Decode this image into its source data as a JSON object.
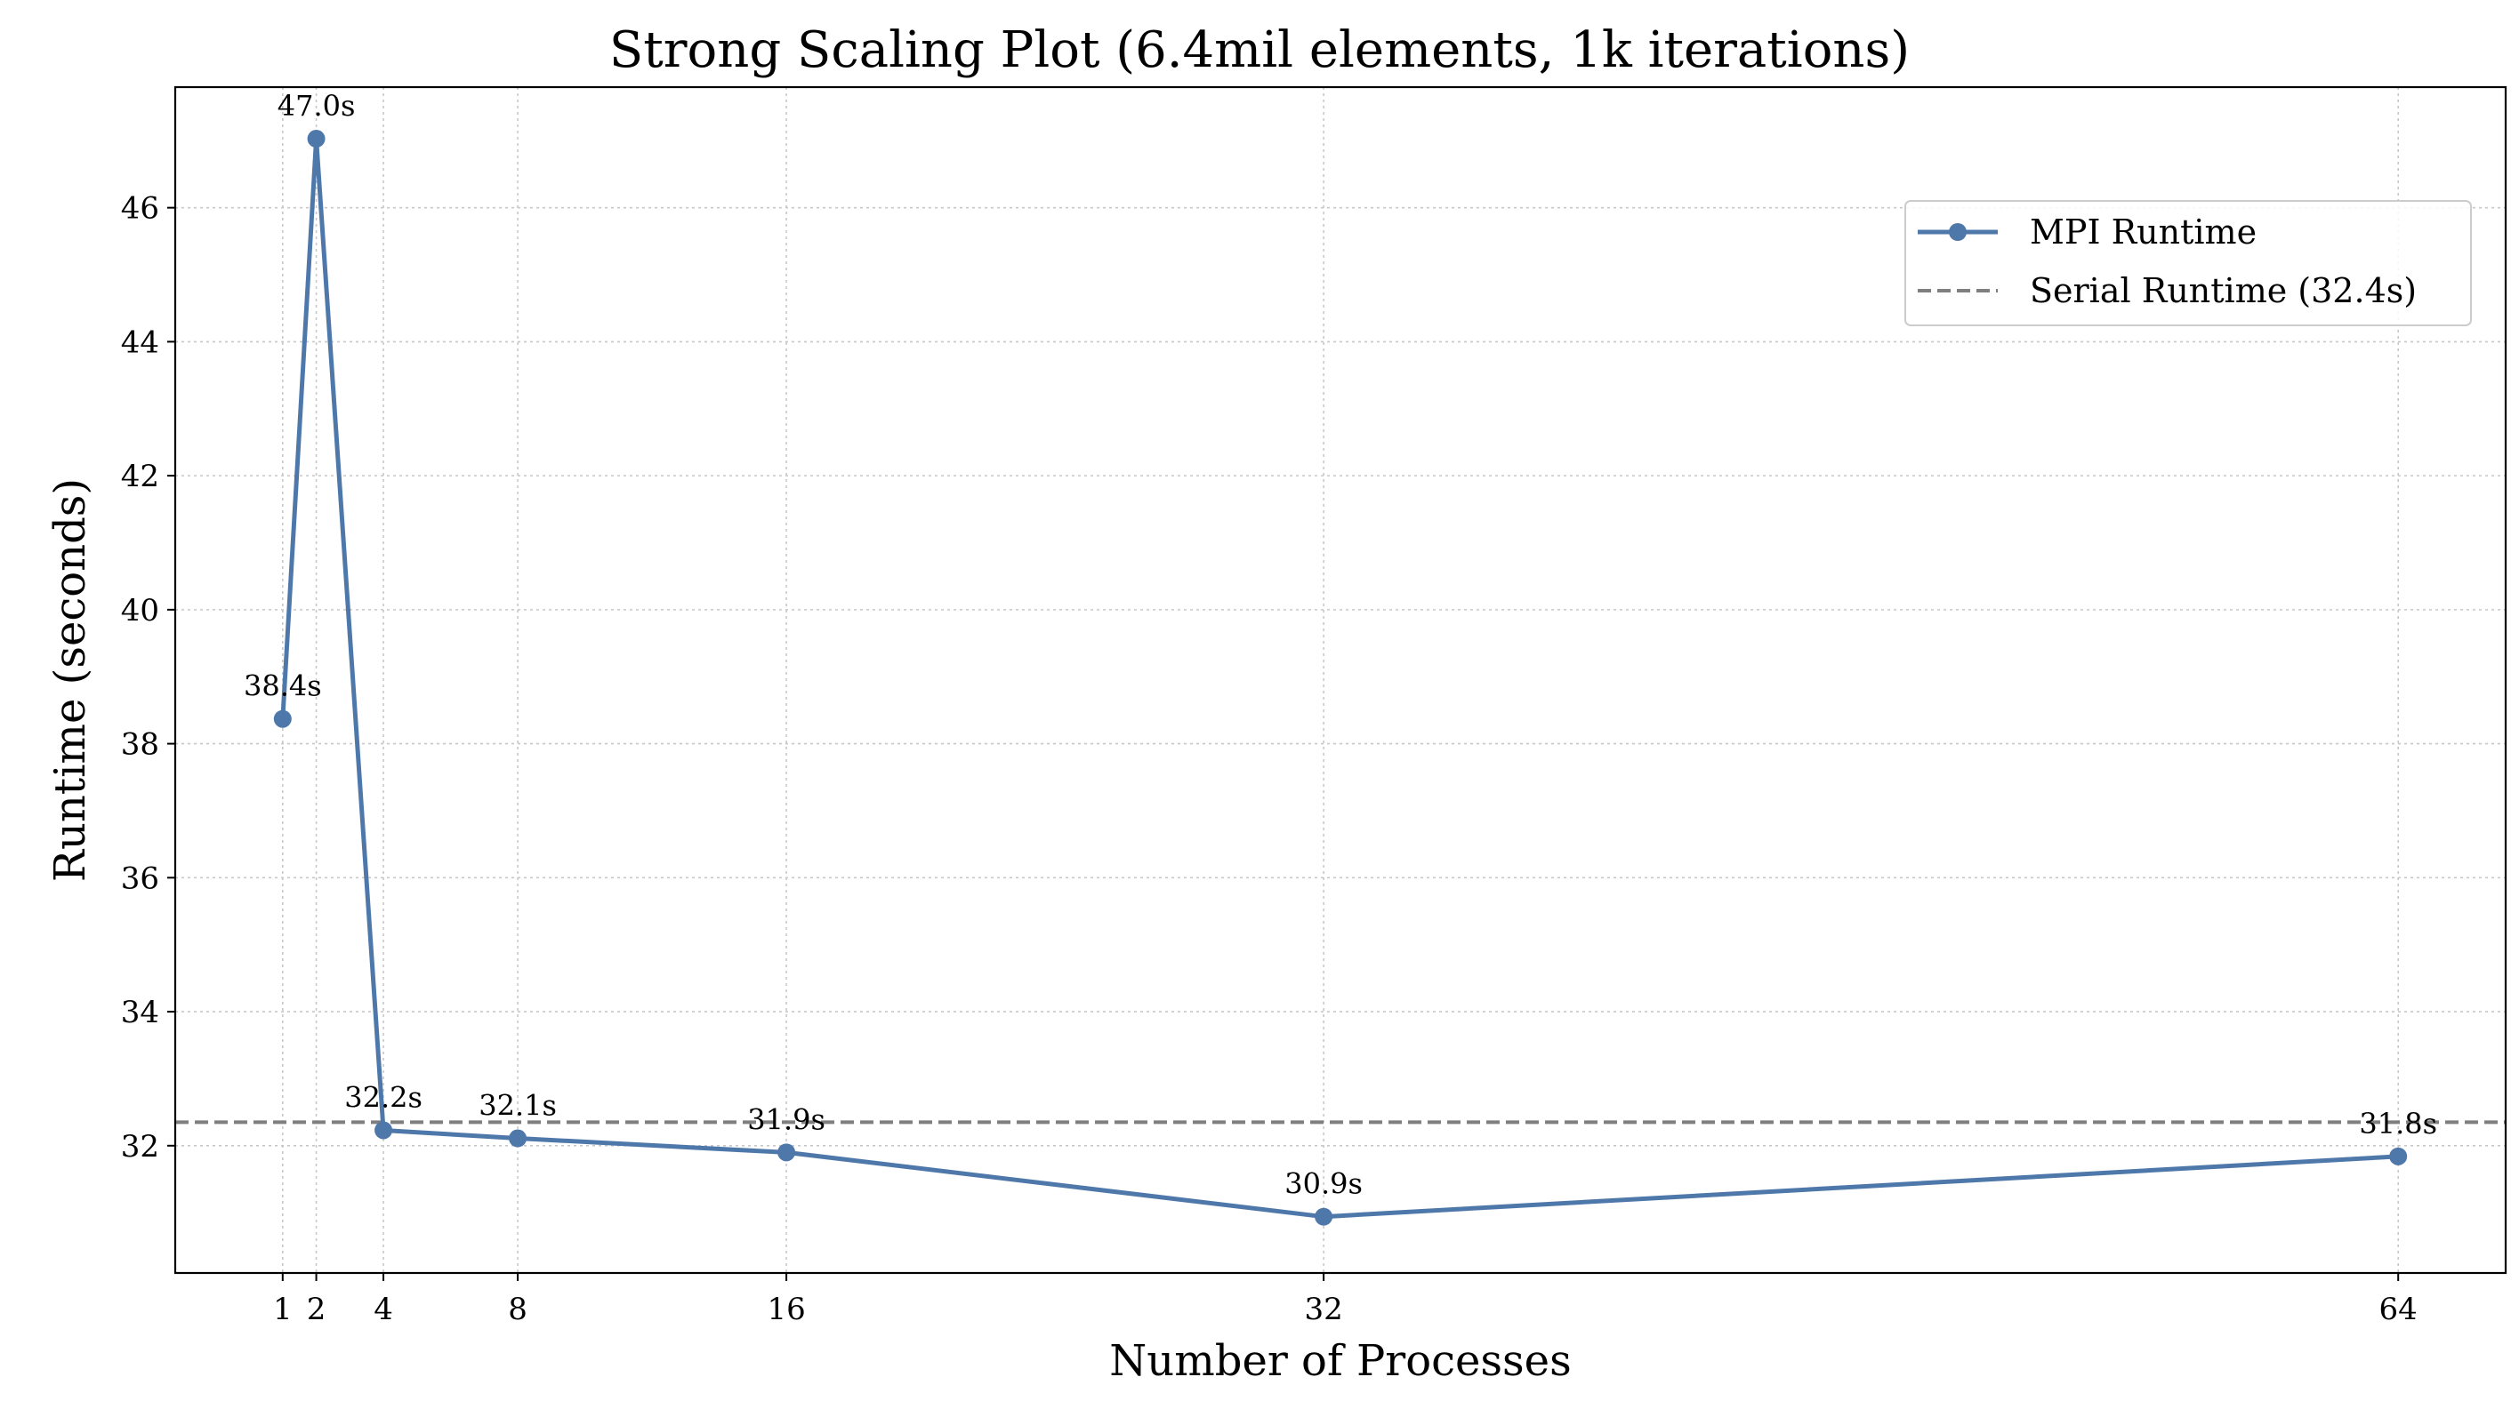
{
  "chart_data": {
    "type": "line",
    "title": "Strong Scaling Plot (6.4mil elements, 1k iterations)",
    "xlabel": "Number of Processes",
    "ylabel": "Runtime (seconds)",
    "x": [
      1,
      2,
      4,
      8,
      16,
      32,
      64
    ],
    "x_tick_labels": [
      "1",
      "2",
      "4",
      "8",
      "16",
      "32",
      "64"
    ],
    "y_ticks": [
      32,
      34,
      36,
      38,
      40,
      42,
      44,
      46
    ],
    "y_tick_labels": [
      "32",
      "34",
      "36",
      "38",
      "40",
      "42",
      "44",
      "46"
    ],
    "xlim": [
      -2.2,
      67.2
    ],
    "ylim": [
      30.1,
      47.8
    ],
    "grid": true,
    "legend_position": "upper right",
    "series": [
      {
        "name": "MPI Runtime",
        "values": [
          38.37,
          47.03,
          32.23,
          32.11,
          31.9,
          30.94,
          31.84
        ],
        "point_labels": [
          "38.4s",
          "47.0s",
          "32.2s",
          "32.1s",
          "31.9s",
          "30.9s",
          "31.8s"
        ],
        "color": "#4f78aa",
        "style": "solid-with-markers"
      }
    ],
    "reference_lines": [
      {
        "name": "Serial Runtime (32.4s)",
        "value": 32.35,
        "color": "#7f7f7f",
        "style": "dashed"
      }
    ]
  }
}
